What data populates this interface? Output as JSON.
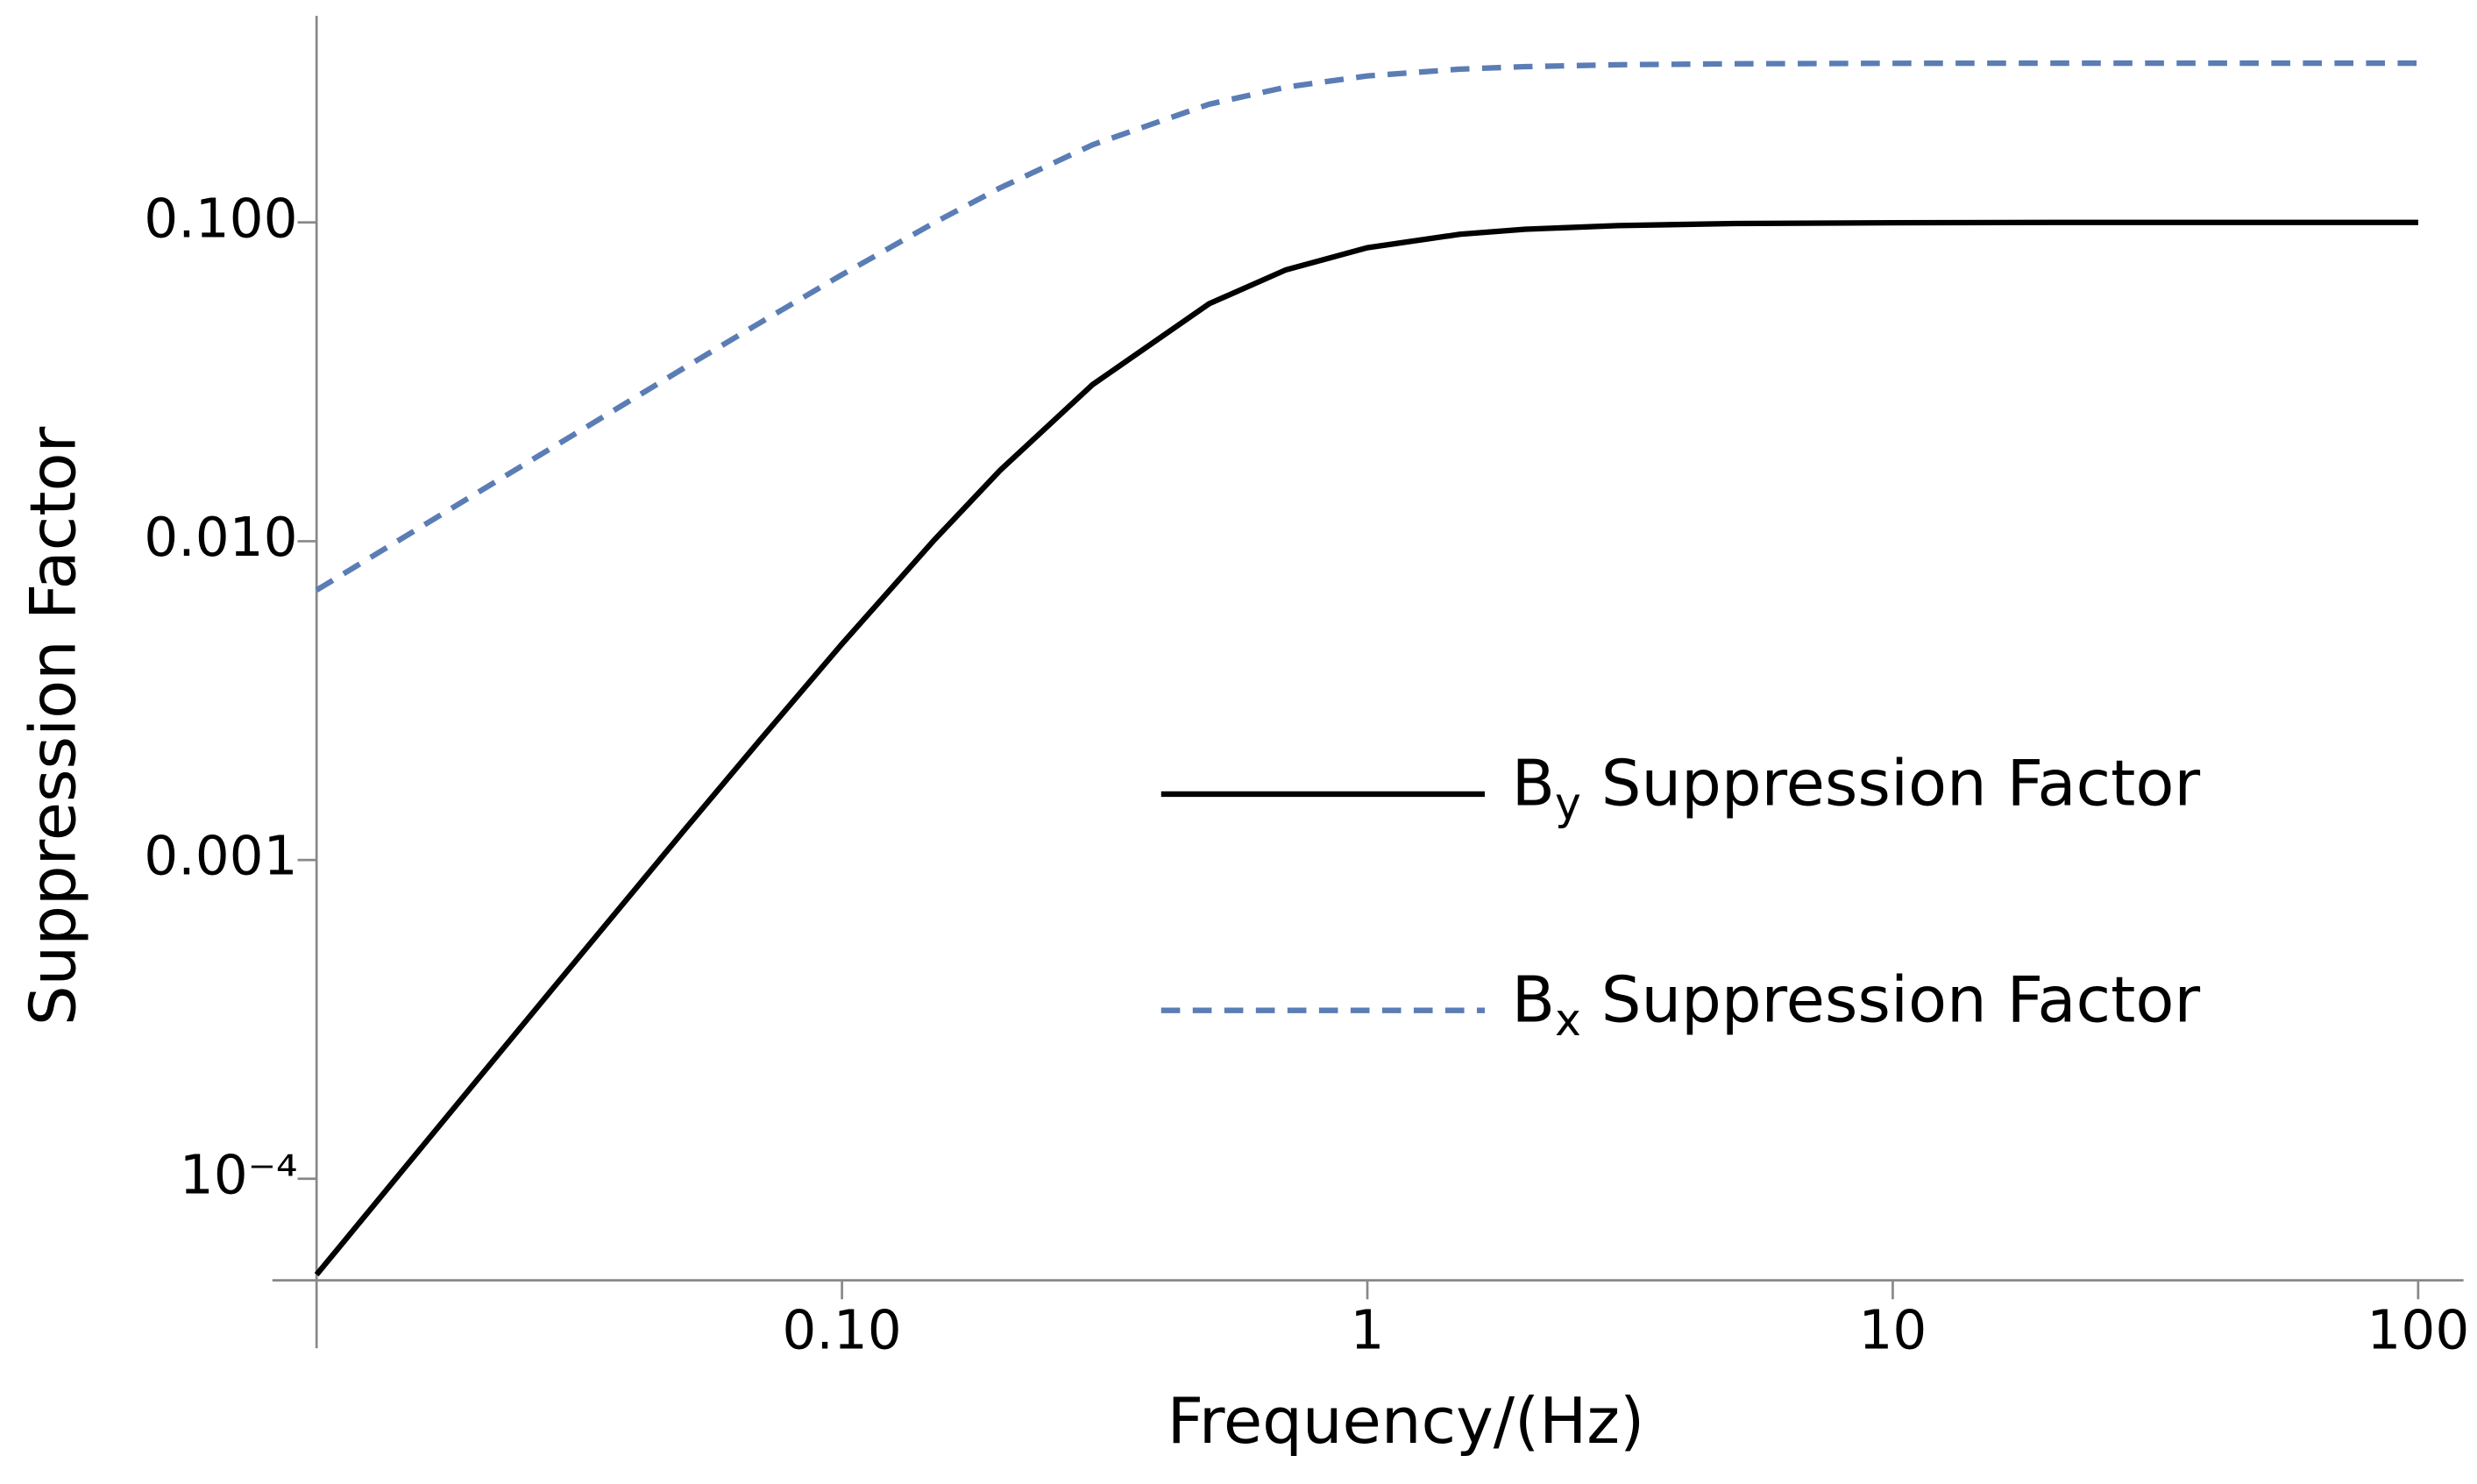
{
  "chart_data": {
    "type": "line",
    "xlabel": "Frequency/(Hz)",
    "ylabel": "Suppression Factor",
    "x": [
      0.01,
      0.02,
      0.03,
      0.05,
      0.07,
      0.1,
      0.15,
      0.2,
      0.3,
      0.5,
      0.7,
      1,
      1.5,
      2,
      3,
      5,
      10,
      20,
      50,
      100
    ],
    "series": [
      {
        "name": "By Suppression Factor",
        "color": "#000000",
        "style": "solid",
        "values": [
          5e-05,
          0.0002,
          0.000448,
          0.001235,
          0.00239,
          0.00476,
          0.0101,
          0.0167,
          0.031,
          0.0556,
          0.071,
          0.0833,
          0.0918,
          0.0952,
          0.0978,
          0.0992,
          0.0998,
          0.1,
          0.1,
          0.1
        ]
      },
      {
        "name": "Bx Suppression Factor",
        "color": "#5b7db5",
        "style": "dashed",
        "values": [
          0.00702,
          0.01403,
          0.021,
          0.0349,
          0.0486,
          0.0686,
          0.0999,
          0.1284,
          0.1753,
          0.2349,
          0.2658,
          0.2882,
          0.3027,
          0.3082,
          0.3125,
          0.3147,
          0.3158,
          0.316,
          0.316,
          0.316
        ]
      }
    ],
    "xscale": "log",
    "yscale": "log",
    "xlim": [
      0.01,
      122
    ],
    "ylim": [
      4.8e-05,
      0.445
    ],
    "xticks": [
      {
        "value": 0.1,
        "label": "0.10"
      },
      1,
      10,
      100
    ],
    "yticks": [
      {
        "value": 0.0001,
        "label": "10⁻⁴"
      },
      {
        "value": 0.001,
        "label": "0.001"
      },
      {
        "value": 0.01,
        "label": "0.010"
      },
      {
        "value": 0.1,
        "label": "0.100"
      }
    ],
    "grid": false,
    "legend": "right"
  }
}
